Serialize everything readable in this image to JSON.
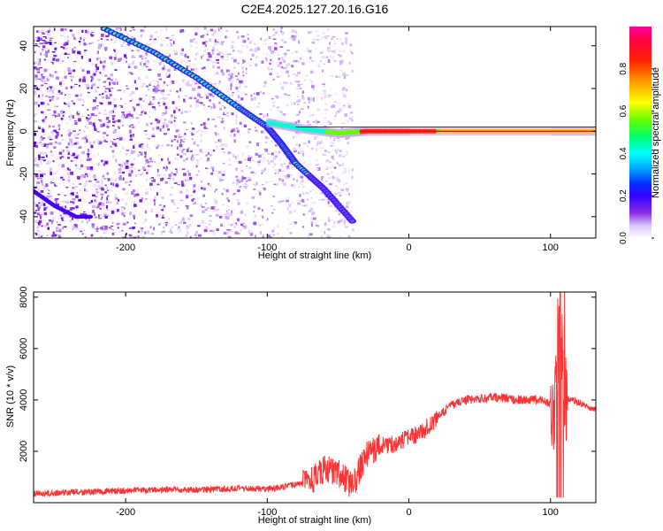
{
  "title": "C2E4.2025.127.20.16.G16",
  "chart_data": [
    {
      "type": "heatmap",
      "title": "C2E4.2025.127.20.16.G16",
      "xlabel": "Height of straight line (km)",
      "ylabel": "Frequency (Hz)",
      "xlim": [
        -265,
        132
      ],
      "ylim": [
        -50,
        49
      ],
      "x_ticks": [
        -200,
        -100,
        0,
        100
      ],
      "y_ticks": [
        -40,
        -20,
        0,
        20,
        40
      ],
      "tick_labels_x": [
        "-200",
        "-100",
        "0",
        "100"
      ],
      "tick_labels_y": [
        "-40",
        "-20",
        "0",
        "20",
        "40"
      ],
      "colorbar": {
        "label": "Normalized spectral amplitude",
        "range": [
          0,
          1
        ],
        "ticks": [
          "0.0",
          "0.2",
          "0.4",
          "0.6",
          "0.8"
        ],
        "colormap": [
          "#ffffff",
          "#e0c8ff",
          "#8b2be2",
          "#5a00ff",
          "#0000ff",
          "#00aaff",
          "#00ffff",
          "#00ff66",
          "#66ff00",
          "#ffff00",
          "#ff9900",
          "#ff0000",
          "#ff00aa"
        ]
      },
      "features": [
        {
          "name": "diagonal track",
          "points": [
            [
              -215,
              48
            ],
            [
              -180,
              37
            ],
            [
              -150,
              25
            ],
            [
              -120,
              11
            ],
            [
              -100,
              2
            ],
            [
              -90,
              -6
            ],
            [
              -80,
              -15
            ],
            [
              -60,
              -27
            ],
            [
              -40,
              -42
            ]
          ]
        },
        {
          "name": "carrier near 0 Hz",
          "points": [
            [
              -100,
              4
            ],
            [
              -75,
              1
            ],
            [
              -50,
              -1
            ],
            [
              -30,
              0
            ],
            [
              0,
              0
            ],
            [
              50,
              0
            ],
            [
              100,
              0
            ],
            [
              132,
              0
            ]
          ]
        },
        {
          "name": "lower left track",
          "points": [
            [
              -265,
              -28
            ],
            [
              -250,
              -35
            ],
            [
              -235,
              -40
            ],
            [
              -225,
              -40
            ]
          ]
        }
      ]
    },
    {
      "type": "line",
      "xlabel": "Height of straight line (km)",
      "ylabel": "SNR (10 * v/v)",
      "xlim": [
        -265,
        132
      ],
      "ylim": [
        0,
        8200
      ],
      "x_ticks": [
        -200,
        -100,
        0,
        100
      ],
      "y_ticks": [
        2000,
        4000,
        6000,
        8000
      ],
      "tick_labels_x": [
        "-200",
        "-100",
        "0",
        "100"
      ],
      "tick_labels_y": [
        "2000",
        "4000",
        "6000",
        "8000"
      ],
      "series_color": "#ff3333",
      "x": [
        -265,
        -240,
        -210,
        -180,
        -150,
        -120,
        -100,
        -90,
        -80,
        -70,
        -60,
        -50,
        -40,
        -30,
        -20,
        -10,
        0,
        10,
        20,
        30,
        40,
        60,
        80,
        95,
        100,
        103,
        105,
        107,
        110,
        120,
        132
      ],
      "y": [
        350,
        400,
        450,
        500,
        500,
        550,
        550,
        600,
        700,
        800,
        1300,
        1200,
        600,
        1900,
        2200,
        2300,
        2500,
        2800,
        3300,
        3800,
        4000,
        4100,
        4000,
        4000,
        3800,
        3600,
        6200,
        7400,
        4100,
        3900,
        3600
      ]
    }
  ]
}
